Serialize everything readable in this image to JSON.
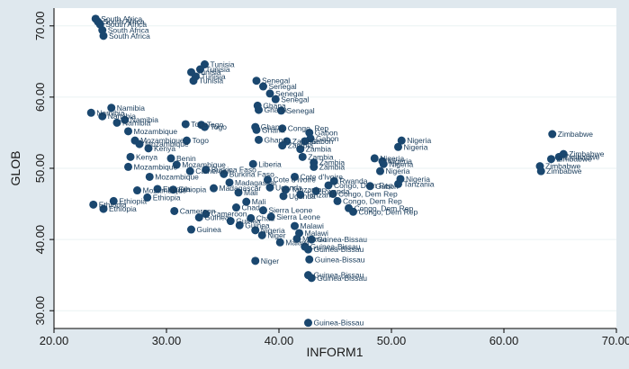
{
  "chart_data": {
    "type": "scatter",
    "xlabel": "INFORM1",
    "ylabel": "GLOB",
    "xlim": [
      20,
      70
    ],
    "ylim": [
      27.5,
      72.5
    ],
    "xticks": [
      "20.00",
      "30.00",
      "40.00",
      "50.00",
      "60.00",
      "70.00"
    ],
    "yticks": [
      "30.00",
      "40.00",
      "50.00",
      "60.00",
      "70.00"
    ],
    "grid": "horizontal",
    "marker_color": "#1a476f",
    "background_color": "#dfe8ee",
    "plot_background_color": "#ffffff",
    "points": [
      {
        "x": 23.7,
        "y": 71.0,
        "label": "South Africa"
      },
      {
        "x": 23.9,
        "y": 70.6,
        "label": "South Africa"
      },
      {
        "x": 24.1,
        "y": 70.2,
        "label": "South Africa"
      },
      {
        "x": 24.3,
        "y": 69.4,
        "label": "South Africa"
      },
      {
        "x": 24.4,
        "y": 68.6,
        "label": "South Africa"
      },
      {
        "x": 33.4,
        "y": 64.6,
        "label": "Tunisia"
      },
      {
        "x": 33.0,
        "y": 63.9,
        "label": "Tunisia"
      },
      {
        "x": 32.2,
        "y": 63.5,
        "label": "Tunisia"
      },
      {
        "x": 32.6,
        "y": 62.9,
        "label": "Tunisia"
      },
      {
        "x": 32.4,
        "y": 62.3,
        "label": "Tunisia"
      },
      {
        "x": 38.0,
        "y": 62.3,
        "label": "Senegal"
      },
      {
        "x": 38.6,
        "y": 61.5,
        "label": "Senegal"
      },
      {
        "x": 39.2,
        "y": 60.5,
        "label": "Senegal"
      },
      {
        "x": 39.7,
        "y": 59.7,
        "label": "Senegal"
      },
      {
        "x": 38.1,
        "y": 58.8,
        "label": "Ghana"
      },
      {
        "x": 38.2,
        "y": 58.2,
        "label": "Ghana"
      },
      {
        "x": 40.2,
        "y": 58.1,
        "label": "Senegal"
      },
      {
        "x": 25.1,
        "y": 58.5,
        "label": "Namibia"
      },
      {
        "x": 23.3,
        "y": 57.8,
        "label": "Namibia"
      },
      {
        "x": 24.3,
        "y": 57.3,
        "label": "Namibia"
      },
      {
        "x": 26.3,
        "y": 56.8,
        "label": "Namibia"
      },
      {
        "x": 25.6,
        "y": 56.4,
        "label": "Namibia"
      },
      {
        "x": 31.7,
        "y": 56.2,
        "label": "Togo"
      },
      {
        "x": 33.1,
        "y": 56.1,
        "label": "Togo"
      },
      {
        "x": 33.4,
        "y": 55.8,
        "label": "Togo"
      },
      {
        "x": 26.6,
        "y": 55.2,
        "label": "Mozambique"
      },
      {
        "x": 37.9,
        "y": 55.8,
        "label": "Ghana"
      },
      {
        "x": 38.0,
        "y": 55.4,
        "label": "Ghana"
      },
      {
        "x": 40.3,
        "y": 55.6,
        "label": "Congo, Rep"
      },
      {
        "x": 42.7,
        "y": 55.0,
        "label": "Gabon"
      },
      {
        "x": 42.8,
        "y": 54.2,
        "label": "Gabon"
      },
      {
        "x": 38.2,
        "y": 54.0,
        "label": "Ghana"
      },
      {
        "x": 40.7,
        "y": 53.8,
        "label": "Zambia"
      },
      {
        "x": 42.3,
        "y": 53.8,
        "label": "Gabon"
      },
      {
        "x": 40.3,
        "y": 53.2,
        "label": "Zambia"
      },
      {
        "x": 41.9,
        "y": 52.7,
        "label": "Zambia"
      },
      {
        "x": 42.1,
        "y": 51.6,
        "label": "Zambia"
      },
      {
        "x": 31.8,
        "y": 53.9,
        "label": "Togo"
      },
      {
        "x": 27.2,
        "y": 53.9,
        "label": "Mozambique"
      },
      {
        "x": 27.6,
        "y": 53.4,
        "label": "Mozambique"
      },
      {
        "x": 28.4,
        "y": 52.8,
        "label": "Kenya"
      },
      {
        "x": 26.8,
        "y": 51.6,
        "label": "Kenya"
      },
      {
        "x": 30.4,
        "y": 51.4,
        "label": "Benin"
      },
      {
        "x": 26.6,
        "y": 50.2,
        "label": "Mozambique"
      },
      {
        "x": 30.9,
        "y": 50.5,
        "label": "Mozambique"
      },
      {
        "x": 50.9,
        "y": 53.9,
        "label": "Nigeria"
      },
      {
        "x": 50.6,
        "y": 53.0,
        "label": "Nigeria"
      },
      {
        "x": 48.5,
        "y": 51.4,
        "label": "Nigeria"
      },
      {
        "x": 49.2,
        "y": 51.0,
        "label": "Nigeria"
      },
      {
        "x": 49.3,
        "y": 50.6,
        "label": "Nigeria"
      },
      {
        "x": 49.0,
        "y": 49.6,
        "label": "Nigeria"
      },
      {
        "x": 50.8,
        "y": 48.5,
        "label": "Nigeria"
      },
      {
        "x": 50.6,
        "y": 47.8,
        "label": "Tanzania"
      },
      {
        "x": 48.1,
        "y": 47.5,
        "label": "Gabon"
      },
      {
        "x": 64.3,
        "y": 54.8,
        "label": "Zimbabwe"
      },
      {
        "x": 65.3,
        "y": 52.0,
        "label": "Zimbabwe"
      },
      {
        "x": 64.9,
        "y": 51.6,
        "label": "Zimbabwe"
      },
      {
        "x": 64.2,
        "y": 51.3,
        "label": "Zimbabwe"
      },
      {
        "x": 63.2,
        "y": 50.3,
        "label": "Zimbabwe"
      },
      {
        "x": 63.3,
        "y": 49.6,
        "label": "Zimbabwe"
      },
      {
        "x": 37.7,
        "y": 50.6,
        "label": "Liberia"
      },
      {
        "x": 43.1,
        "y": 50.8,
        "label": "Zambia"
      },
      {
        "x": 43.1,
        "y": 50.2,
        "label": "Zambia"
      },
      {
        "x": 32.1,
        "y": 49.6,
        "label": "Cameroon"
      },
      {
        "x": 33.5,
        "y": 49.8,
        "label": "Burkina Faso"
      },
      {
        "x": 35.1,
        "y": 49.2,
        "label": "Burkina Faso"
      },
      {
        "x": 28.5,
        "y": 48.8,
        "label": "Mozambique"
      },
      {
        "x": 27.4,
        "y": 46.9,
        "label": "Mozambique"
      },
      {
        "x": 29.2,
        "y": 47.1,
        "label": "Ethiopia"
      },
      {
        "x": 30.6,
        "y": 47.0,
        "label": "Ethiopia"
      },
      {
        "x": 28.3,
        "y": 45.9,
        "label": "Ethiopia"
      },
      {
        "x": 25.3,
        "y": 45.4,
        "label": "Ethiopia"
      },
      {
        "x": 23.5,
        "y": 44.9,
        "label": "Ethiopia"
      },
      {
        "x": 24.4,
        "y": 44.3,
        "label": "Ethiopia"
      },
      {
        "x": 30.7,
        "y": 44.0,
        "label": "Cameroon"
      },
      {
        "x": 33.5,
        "y": 43.6,
        "label": "Cameroon"
      },
      {
        "x": 32.9,
        "y": 43.1,
        "label": "Guinea"
      },
      {
        "x": 35.7,
        "y": 42.6,
        "label": "Guinea"
      },
      {
        "x": 36.5,
        "y": 42.0,
        "label": "Guinea"
      },
      {
        "x": 32.2,
        "y": 41.4,
        "label": "Guinea"
      },
      {
        "x": 37.9,
        "y": 41.3,
        "label": "Nigeria"
      },
      {
        "x": 38.5,
        "y": 40.6,
        "label": "Niger"
      },
      {
        "x": 41.4,
        "y": 41.9,
        "label": "Malawi"
      },
      {
        "x": 41.8,
        "y": 40.9,
        "label": "Malawi"
      },
      {
        "x": 41.6,
        "y": 40.1,
        "label": "Malawi"
      },
      {
        "x": 40.1,
        "y": 39.6,
        "label": "Malawi"
      },
      {
        "x": 42.9,
        "y": 40.0,
        "label": "Guinea-Bissau"
      },
      {
        "x": 42.3,
        "y": 39.0,
        "label": "Guinea-Bissau"
      },
      {
        "x": 42.6,
        "y": 38.6,
        "label": "Guinea-Bissau"
      },
      {
        "x": 37.9,
        "y": 37.0,
        "label": "Niger"
      },
      {
        "x": 42.7,
        "y": 37.2,
        "label": "Guinea-Bissau"
      },
      {
        "x": 42.6,
        "y": 35.0,
        "label": "Guinea-Bissau"
      },
      {
        "x": 42.9,
        "y": 34.6,
        "label": "Guinea-Bissau"
      },
      {
        "x": 42.6,
        "y": 28.3,
        "label": "Guinea-Bissau"
      },
      {
        "x": 44.4,
        "y": 47.6,
        "label": "Congo, Dem Rep"
      },
      {
        "x": 44.8,
        "y": 46.4,
        "label": "Congo, Dem Rep"
      },
      {
        "x": 45.2,
        "y": 45.4,
        "label": "Congo, Dem Rep"
      },
      {
        "x": 46.2,
        "y": 44.4,
        "label": "Congo, Dem Rep"
      },
      {
        "x": 46.6,
        "y": 43.9,
        "label": "Congo, Dem Rep"
      },
      {
        "x": 39.2,
        "y": 47.3,
        "label": "Uganda"
      },
      {
        "x": 40.4,
        "y": 46.1,
        "label": "Uganda"
      },
      {
        "x": 36.4,
        "y": 46.6,
        "label": "Mali"
      },
      {
        "x": 37.1,
        "y": 45.3,
        "label": "Mali"
      },
      {
        "x": 38.6,
        "y": 44.1,
        "label": "Sierra Leone"
      },
      {
        "x": 39.3,
        "y": 43.2,
        "label": "Sierra Leone"
      },
      {
        "x": 39.0,
        "y": 48.4,
        "label": "Cote d'Ivoire"
      },
      {
        "x": 41.4,
        "y": 48.8,
        "label": "Cote d'Ivoire"
      },
      {
        "x": 35.6,
        "y": 48.0,
        "label": "Madagascar"
      },
      {
        "x": 34.2,
        "y": 47.2,
        "label": "Madagascar"
      },
      {
        "x": 40.6,
        "y": 47.0,
        "label": "Tanzania"
      },
      {
        "x": 41.9,
        "y": 46.3,
        "label": "Tanzania"
      },
      {
        "x": 43.3,
        "y": 46.8,
        "label": "Rwanda"
      },
      {
        "x": 44.9,
        "y": 48.2,
        "label": "Rwanda"
      },
      {
        "x": 36.2,
        "y": 44.5,
        "label": "Chad"
      },
      {
        "x": 37.5,
        "y": 43.0,
        "label": "Chad"
      }
    ]
  }
}
